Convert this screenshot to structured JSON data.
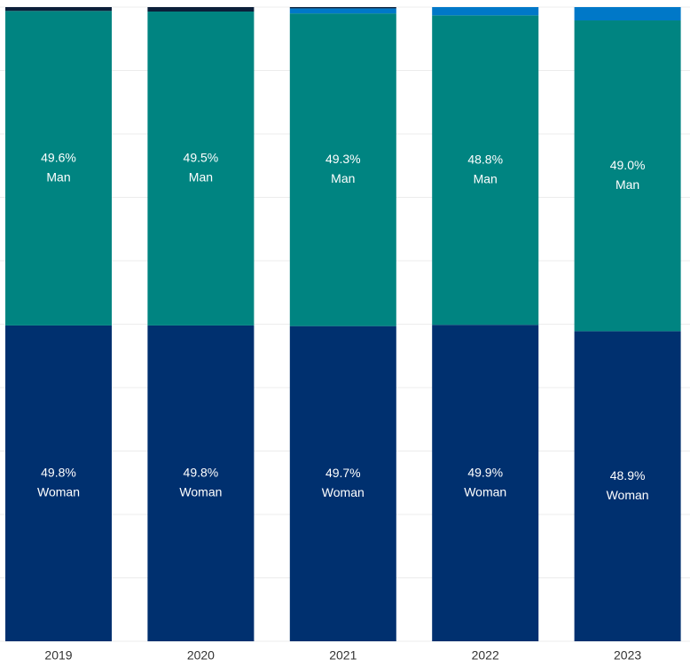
{
  "chart_data": {
    "type": "stacked-bar",
    "categories": [
      "2019",
      "2020",
      "2021",
      "2022",
      "2023"
    ],
    "series": [
      {
        "name": "Woman",
        "color": "#00306f",
        "values": [
          49.8,
          49.8,
          49.7,
          49.9,
          48.9
        ],
        "value_labels": [
          "49.8%",
          "49.8%",
          "49.7%",
          "49.9%",
          "48.9%"
        ]
      },
      {
        "name": "Man",
        "color": "#008481",
        "values": [
          49.6,
          49.5,
          49.3,
          48.8,
          49.0
        ],
        "value_labels": [
          "49.6%",
          "49.5%",
          "49.3%",
          "48.8%",
          "49.0%"
        ]
      },
      {
        "color": "#0078c8",
        "values": [
          null,
          null,
          0.8,
          1.3,
          2.1
        ]
      },
      {
        "color": "#0b1f3a",
        "values": [
          0.6,
          0.7,
          0.2,
          null,
          null
        ]
      }
    ],
    "ylim": [
      0,
      100
    ],
    "yticks": [
      0,
      10,
      20,
      30,
      40,
      50,
      60,
      70,
      80,
      90,
      100
    ],
    "grid": true
  }
}
